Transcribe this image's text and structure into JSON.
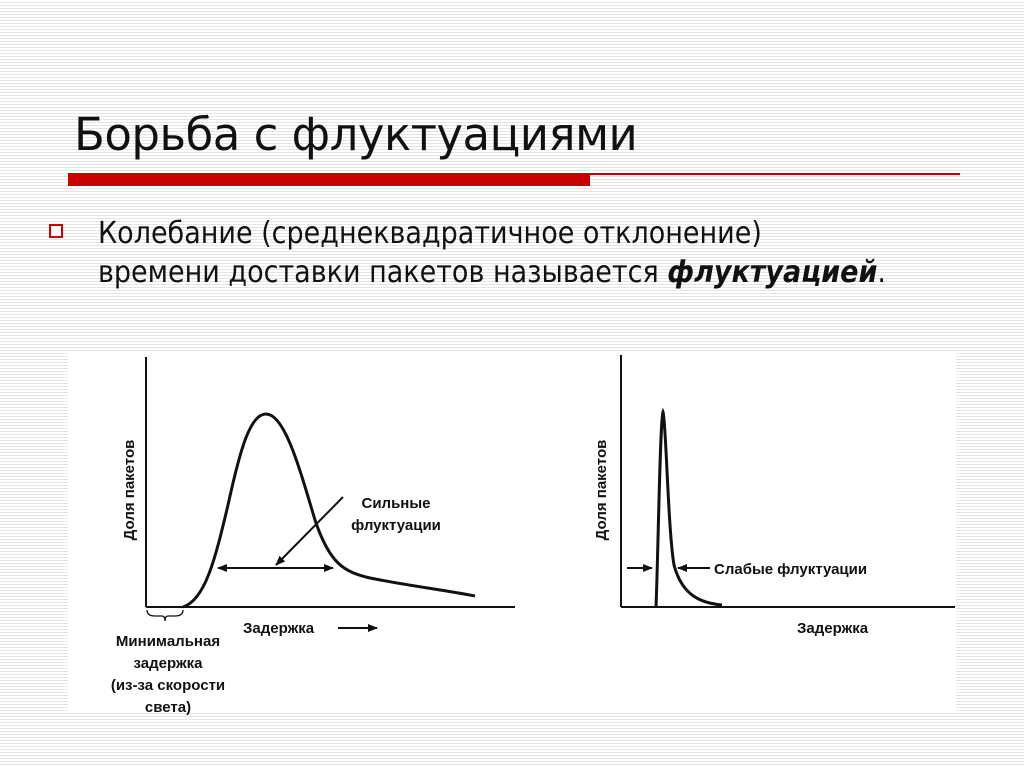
{
  "slide": {
    "title": "Борьба с флуктуациями",
    "accent_color": "#c80000",
    "bullet": {
      "icon": "hollow-square-bullet-icon",
      "text_before": "Колебание (среднеквадратичное отклонение) времени доставки пакетов называется ",
      "emphasis": "флуктуацией",
      "text_after": "."
    }
  },
  "figure": {
    "left_chart": {
      "ylabel": "Доля пакетов",
      "xlabel": "Задержка",
      "annotation_line1": "Сильные",
      "annotation_line2": "флуктуации",
      "min_delay_lines": [
        "Минимальная",
        "задержка",
        "(из-за скорости",
        "света)"
      ]
    },
    "right_chart": {
      "ylabel": "Доля пакетов",
      "xlabel": "Задержка",
      "annotation": "Слабые флуктуации"
    }
  }
}
